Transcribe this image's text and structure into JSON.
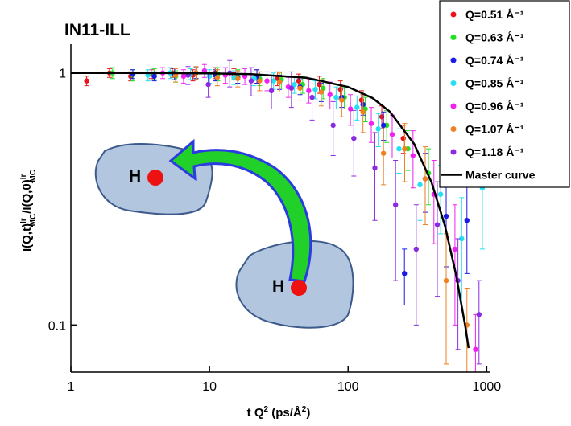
{
  "chart_data": {
    "type": "scatter",
    "title": "IN11-ILL",
    "xlabel": [
      "t Q",
      "2",
      " (ps/Å",
      "2",
      ")"
    ],
    "ylabel": [
      "I(Q,t)",
      "Ir",
      "MC",
      "/I(Q,0)",
      "Ir",
      "MC"
    ],
    "xscale": "log",
    "yscale": "log",
    "xlim": [
      1,
      1050
    ],
    "ylim": [
      0.065,
      1.3
    ],
    "xticks": [
      1,
      10,
      100,
      1000
    ],
    "yticks": [
      0.1,
      1
    ],
    "legend": "upper right",
    "annotations": [
      "H",
      "H"
    ],
    "series": [
      {
        "name": "Q=0.51 Å⁻¹",
        "color": "#e8141a",
        "x": [
          1.3,
          1.9,
          2.7,
          3.8,
          5.4,
          7.6,
          11,
          15,
          22,
          31,
          44,
          62,
          88,
          125,
          175,
          250
        ],
        "values": [
          0.93,
          1.0,
          0.97,
          0.99,
          1.0,
          0.98,
          1.0,
          0.99,
          0.97,
          0.95,
          0.93,
          0.9,
          0.86,
          0.78,
          0.67,
          0.55
        ],
        "errors": [
          0.04,
          0.04,
          0.04,
          0.04,
          0.04,
          0.05,
          0.05,
          0.05,
          0.06,
          0.06,
          0.06,
          0.07,
          0.07,
          0.07,
          0.07,
          0.07
        ]
      },
      {
        "name": "Q=0.63 Å⁻¹",
        "color": "#22e022",
        "x": [
          2,
          2.8,
          4,
          5.7,
          8,
          11.5,
          16,
          23,
          33,
          47,
          66,
          94,
          133,
          190,
          270,
          380
        ],
        "values": [
          1.0,
          0.98,
          0.99,
          0.97,
          1.0,
          0.99,
          0.97,
          0.95,
          0.94,
          0.9,
          0.87,
          0.8,
          0.72,
          0.62,
          0.5,
          0.4
        ],
        "errors": [
          0.05,
          0.05,
          0.05,
          0.05,
          0.05,
          0.06,
          0.06,
          0.06,
          0.07,
          0.07,
          0.08,
          0.08,
          0.08,
          0.09,
          0.09,
          0.1
        ]
      },
      {
        "name": "Q=0.74 Å⁻¹",
        "color": "#1a1ae6",
        "x": [
          2.8,
          4,
          5.6,
          8,
          11,
          16,
          22,
          32,
          45,
          64,
          90,
          128,
          180,
          255,
          360,
          510,
          720
        ],
        "values": [
          0.99,
          0.97,
          0.99,
          1.0,
          0.98,
          0.96,
          0.97,
          0.92,
          0.88,
          0.84,
          0.8,
          0.75,
          0.62,
          0.16,
          0.38,
          0.27,
          0.26
        ],
        "errors": [
          0.04,
          0.04,
          0.05,
          0.05,
          0.05,
          0.05,
          0.06,
          0.06,
          0.06,
          0.07,
          0.07,
          0.07,
          0.08,
          0.04,
          0.1,
          0.1,
          0.1
        ]
      },
      {
        "name": "Q=0.85 Å⁻¹",
        "color": "#22e0f0",
        "x": [
          3.6,
          5.2,
          7.3,
          10,
          15,
          21,
          29,
          41,
          58,
          82,
          116,
          165,
          233,
          330,
          465,
          660,
          930
        ],
        "values": [
          0.98,
          1.0,
          0.99,
          0.97,
          0.96,
          0.95,
          0.93,
          0.9,
          0.86,
          0.8,
          0.73,
          0.6,
          0.5,
          0.36,
          0.33,
          0.22,
          0.35
        ],
        "errors": [
          0.05,
          0.05,
          0.05,
          0.06,
          0.06,
          0.06,
          0.07,
          0.07,
          0.07,
          0.08,
          0.08,
          0.09,
          0.1,
          0.1,
          0.1,
          0.1,
          0.15
        ]
      },
      {
        "name": "Q=0.96 Å⁻¹",
        "color": "#f022f0",
        "x": [
          4.6,
          6.5,
          9.2,
          13,
          18,
          26,
          37,
          52,
          74,
          104,
          147,
          208,
          294,
          416,
          590,
          830
        ],
        "values": [
          1.0,
          0.97,
          1.02,
          0.98,
          0.97,
          0.93,
          0.88,
          0.85,
          0.82,
          0.72,
          0.63,
          0.57,
          0.47,
          0.33,
          0.2,
          0.08
        ],
        "errors": [
          0.05,
          0.06,
          0.06,
          0.07,
          0.07,
          0.08,
          0.08,
          0.09,
          0.1,
          0.1,
          0.1,
          0.11,
          0.12,
          0.12,
          0.1,
          0.03
        ]
      },
      {
        "name": "Q=1.07 Å⁻¹",
        "color": "#f08020",
        "x": [
          5.7,
          8,
          11.4,
          16,
          23,
          32,
          45,
          64,
          90,
          128,
          180,
          256,
          360,
          510,
          720
        ],
        "values": [
          0.98,
          1.0,
          0.96,
          0.95,
          0.93,
          0.92,
          0.87,
          0.84,
          0.78,
          0.7,
          0.48,
          0.5,
          0.38,
          0.15,
          0.1
        ],
        "errors": [
          0.06,
          0.06,
          0.07,
          0.07,
          0.08,
          0.08,
          0.09,
          0.1,
          0.11,
          0.12,
          0.12,
          0.13,
          0.13,
          0.08,
          0.04
        ]
      },
      {
        "name": "Q=1.18 Å⁻¹",
        "color": "#8a2be2",
        "x": [
          7,
          9.8,
          14,
          20,
          28,
          39,
          55,
          78,
          110,
          156,
          220,
          310,
          440,
          620,
          880
        ],
        "values": [
          0.98,
          0.9,
          1.0,
          0.93,
          0.85,
          0.87,
          0.8,
          0.62,
          0.55,
          0.42,
          0.3,
          0.2,
          0.25,
          0.15,
          0.11
        ],
        "errors": [
          0.08,
          0.1,
          0.12,
          0.12,
          0.13,
          0.14,
          0.15,
          0.15,
          0.16,
          0.16,
          0.15,
          0.1,
          0.12,
          0.07,
          0.04
        ]
      }
    ],
    "master_curve": {
      "name": "Master curve",
      "color": "#000000",
      "x": [
        1,
        2,
        5,
        10,
        20,
        50,
        100,
        150,
        200,
        300,
        400,
        500,
        600,
        700,
        740
      ],
      "values": [
        1.0,
        1.0,
        0.999,
        0.996,
        0.989,
        0.957,
        0.88,
        0.795,
        0.702,
        0.522,
        0.368,
        0.247,
        0.159,
        0.099,
        0.081
      ]
    }
  }
}
